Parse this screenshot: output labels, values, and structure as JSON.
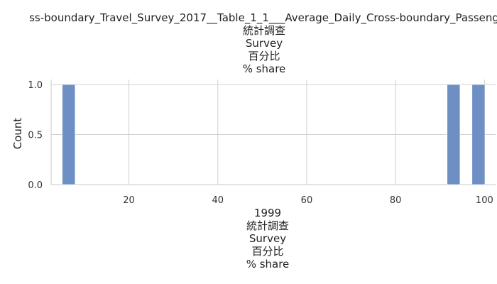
{
  "chart_data": {
    "type": "bar",
    "title_lines": [
      "ss-boundary_Travel_Survey_2017__Table_1_1___Average_Daily_Cross-boundary_Passeng",
      "統計調查",
      "Survey",
      "百分比",
      "% share"
    ],
    "xlabel_lines": [
      "1999",
      "統計調查",
      "Survey",
      "百分比",
      "% share"
    ],
    "ylabel": "Count",
    "xlim": [
      2.5,
      102.5
    ],
    "ylim": [
      0,
      1.05
    ],
    "xticks": [
      20,
      40,
      60,
      80,
      100
    ],
    "yticks": [
      0.0,
      0.5,
      1.0
    ],
    "xtick_labels": [
      "20",
      "40",
      "60",
      "80",
      "100"
    ],
    "ytick_labels": [
      "0.0",
      "0.5",
      "1.0"
    ],
    "bin_width": 2.9,
    "bars": [
      {
        "x_start": 5.0,
        "x_end": 7.9,
        "count": 1
      },
      {
        "x_start": 91.6,
        "x_end": 94.5,
        "count": 1
      },
      {
        "x_start": 97.2,
        "x_end": 100.1,
        "count": 1
      }
    ],
    "bar_color": "#6d8fc4",
    "grid": true
  }
}
